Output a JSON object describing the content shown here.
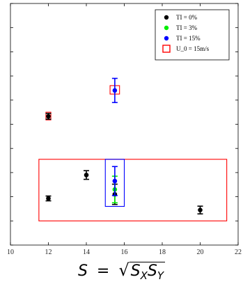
{
  "chart_data": {
    "type": "scatter",
    "title": "",
    "xlabel": "",
    "ylabel": "",
    "xlim": [
      10,
      22
    ],
    "xticks": [
      10,
      12,
      14,
      16,
      18,
      20,
      22
    ],
    "ylim": [
      0,
      10
    ],
    "yticks": [
      0,
      1,
      2,
      3,
      4,
      5,
      6,
      7,
      8,
      9,
      10
    ],
    "y_tick_labels_shown": false,
    "grid": false,
    "legend_position": "top-right",
    "legend": [
      {
        "label": "TI = 0%",
        "marker": "circle",
        "color": "#000000"
      },
      {
        "label": "TI = 3%",
        "marker": "circle",
        "color": "#00ee00"
      },
      {
        "label": "TI = 15%",
        "marker": "circle",
        "color": "#0000ff"
      },
      {
        "label": "U_0 = 15m/s",
        "marker": "square-outline",
        "color": "#ff0000"
      }
    ],
    "series": [
      {
        "name": "TI = 0%",
        "color": "#000000",
        "points": [
          {
            "x": 12.0,
            "y": 5.33,
            "err": 0.12
          },
          {
            "x": 12.0,
            "y": 1.93,
            "err": 0.1
          },
          {
            "x": 14.0,
            "y": 2.9,
            "err": 0.18
          },
          {
            "x": 15.5,
            "y": 2.1,
            "err": 0.42
          },
          {
            "x": 20.0,
            "y": 1.45,
            "err": 0.16
          }
        ]
      },
      {
        "name": "TI = 3%",
        "color": "#00ee00",
        "points": [
          {
            "x": 15.5,
            "y": 2.3,
            "err": 0.55
          }
        ]
      },
      {
        "name": "TI = 15%",
        "color": "#0000ff",
        "points": [
          {
            "x": 15.5,
            "y": 6.4,
            "err": 0.5
          },
          {
            "x": 15.5,
            "y": 2.65,
            "err": 0.6
          }
        ]
      }
    ],
    "highlight_boxes": [
      {
        "name": "U_0 = 15m/s",
        "color": "#ff0000",
        "x": [
          11.87,
          12.13
        ],
        "y": [
          5.18,
          5.5
        ]
      },
      {
        "name": "U_0 = 15m/s",
        "color": "#ff0000",
        "x": [
          15.25,
          15.75
        ],
        "y": [
          6.25,
          6.6
        ]
      },
      {
        "name": "",
        "color": "#ff0000",
        "x": [
          11.5,
          21.4
        ],
        "y": [
          1.0,
          3.55
        ]
      },
      {
        "name": "",
        "color": "#0000ff",
        "x": [
          15.0,
          16.0
        ],
        "y": [
          1.6,
          3.55
        ]
      }
    ]
  },
  "formula": {
    "lhs": "S",
    "equals": "=",
    "radical": "√",
    "s1": "S",
    "sub1": "X",
    "s2": "S",
    "sub2": "Y"
  }
}
